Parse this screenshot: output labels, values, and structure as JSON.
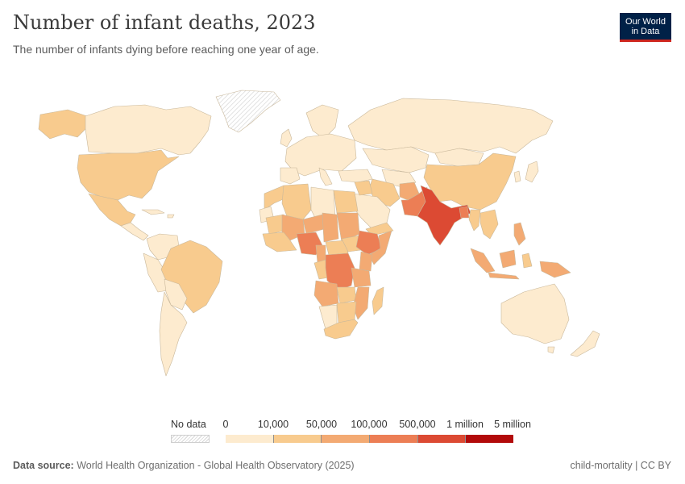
{
  "header": {
    "title": "Number of infant deaths, 2023",
    "subtitle": "The number of infants dying before reaching one year of age."
  },
  "logo": {
    "line1": "Our World",
    "line2": "in Data"
  },
  "legend": {
    "no_data_label": "No data",
    "ticks": [
      "0",
      "10,000",
      "50,000",
      "100,000",
      "500,000",
      "1 million",
      "5 million"
    ],
    "colors": [
      "#fdebcf",
      "#f8cb8e",
      "#f3aa73",
      "#ec7e55",
      "#dc4a33",
      "#b20a0a"
    ]
  },
  "footer": {
    "source_label": "Data source:",
    "source_text": "World Health Organization - Global Health Observatory (2025)",
    "license": "child-mortality | CC BY"
  }
}
